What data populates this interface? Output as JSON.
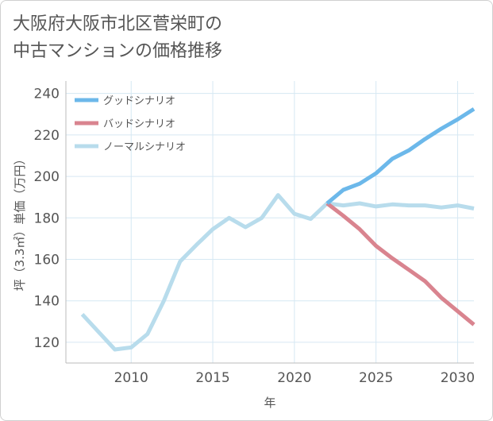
{
  "title_lines": [
    "大阪府大阪市北区菅栄町の",
    "中古マンションの価格推移"
  ],
  "chart_data": {
    "type": "line",
    "title": "大阪府大阪市北区菅栄町の中古マンションの価格推移",
    "xlabel": "年",
    "ylabel": "坪（3.3㎡）単価（万円）",
    "xlim": [
      2006,
      2031
    ],
    "ylim": [
      110,
      246
    ],
    "x_ticks": [
      2010,
      2015,
      2020,
      2025,
      2030
    ],
    "y_ticks": [
      120,
      140,
      160,
      180,
      200,
      220,
      240
    ],
    "x_tick_labels": [
      "2010",
      "2015",
      "2020",
      "2025",
      "2030"
    ],
    "y_tick_labels": [
      "120",
      "140",
      "160",
      "180",
      "200",
      "220",
      "240"
    ],
    "grid": true,
    "legend_position": "top-left",
    "series": [
      {
        "name": "グッドシナリオ",
        "color": "#6cb8ea",
        "x": [
          2022,
          2023,
          2024,
          2025,
          2026,
          2027,
          2028,
          2029,
          2030,
          2031
        ],
        "y": [
          187,
          193.5,
          196.5,
          201.5,
          208.5,
          212.5,
          218,
          223,
          227.5,
          232.5
        ]
      },
      {
        "name": "バッドシナリオ",
        "color": "#d9848f",
        "x": [
          2022,
          2023,
          2024,
          2025,
          2026,
          2027,
          2028,
          2029,
          2030,
          2031
        ],
        "y": [
          187,
          181,
          174.5,
          166.5,
          160.5,
          155,
          149.5,
          141.5,
          135,
          128.5
        ]
      },
      {
        "name": "ノーマルシナリオ",
        "color": "#b8dcec",
        "x": [
          2007,
          2008,
          2009,
          2010,
          2011,
          2012,
          2013,
          2014,
          2015,
          2016,
          2017,
          2018,
          2019,
          2020,
          2021,
          2022,
          2023,
          2024,
          2025,
          2026,
          2027,
          2028,
          2029,
          2030,
          2031
        ],
        "y": [
          133.5,
          125,
          116.5,
          117.5,
          124,
          140,
          159,
          167,
          174.5,
          180,
          175.5,
          180,
          191,
          182,
          179.5,
          187,
          186,
          187,
          185.5,
          186.5,
          186,
          186,
          185,
          186,
          184.5
        ]
      }
    ]
  }
}
